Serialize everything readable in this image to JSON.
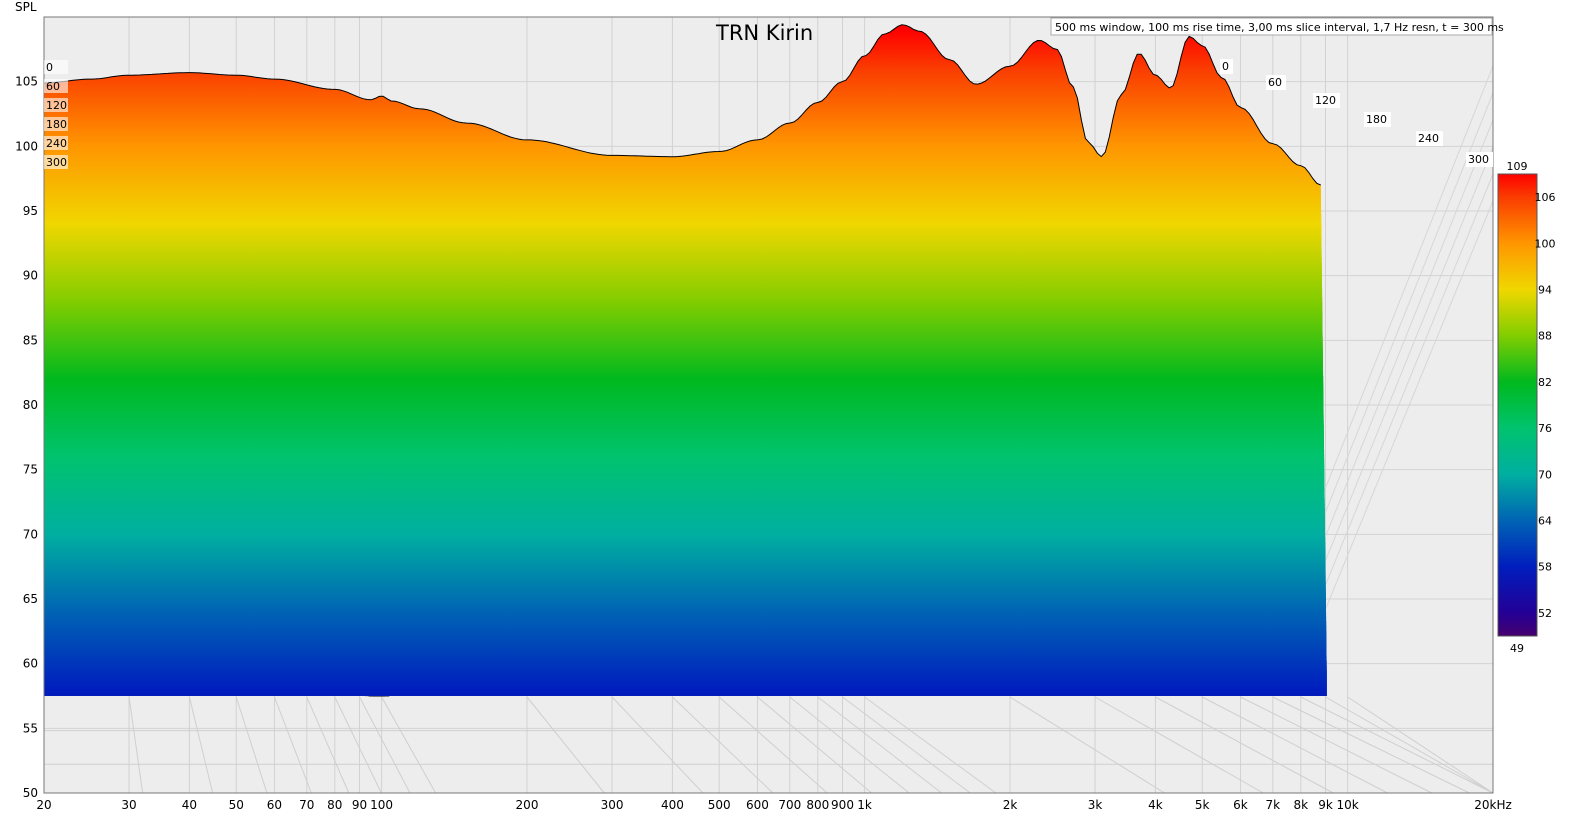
{
  "chart_data": {
    "type": "waterfall",
    "title": "TRN Kirin",
    "info": "500 ms window, 100 ms rise time, 3,00 ms slice interval, 1,7 Hz resn, t = 300 ms",
    "ylabel": "SPL",
    "xunit": "kHz",
    "x_scale": "log",
    "xlim": [
      20,
      20000
    ],
    "ylim": [
      50,
      110
    ],
    "x_ticks": [
      {
        "v": 20,
        "label": "20"
      },
      {
        "v": 30,
        "label": "30"
      },
      {
        "v": 40,
        "label": "40"
      },
      {
        "v": 50,
        "label": "50"
      },
      {
        "v": 60,
        "label": "60"
      },
      {
        "v": 70,
        "label": "70"
      },
      {
        "v": 80,
        "label": "80"
      },
      {
        "v": 90,
        "label": "90"
      },
      {
        "v": 100,
        "label": "100"
      },
      {
        "v": 200,
        "label": "200"
      },
      {
        "v": 300,
        "label": "300"
      },
      {
        "v": 400,
        "label": "400"
      },
      {
        "v": 500,
        "label": "500"
      },
      {
        "v": 600,
        "label": "600"
      },
      {
        "v": 700,
        "label": "700"
      },
      {
        "v": 800,
        "label": "800"
      },
      {
        "v": 900,
        "label": "900"
      },
      {
        "v": 1000,
        "label": "1k"
      },
      {
        "v": 2000,
        "label": "2k"
      },
      {
        "v": 3000,
        "label": "3k"
      },
      {
        "v": 4000,
        "label": "4k"
      },
      {
        "v": 5000,
        "label": "5k"
      },
      {
        "v": 6000,
        "label": "6k"
      },
      {
        "v": 7000,
        "label": "7k"
      },
      {
        "v": 8000,
        "label": "8k"
      },
      {
        "v": 9000,
        "label": "9k"
      },
      {
        "v": 10000,
        "label": "10k"
      },
      {
        "v": 20000,
        "label": "20kHz"
      }
    ],
    "y_ticks": [
      {
        "v": 50,
        "label": "50"
      },
      {
        "v": 55,
        "label": "55"
      },
      {
        "v": 60,
        "label": "60"
      },
      {
        "v": 65,
        "label": "65"
      },
      {
        "v": 70,
        "label": "70"
      },
      {
        "v": 75,
        "label": "75"
      },
      {
        "v": 80,
        "label": "80"
      },
      {
        "v": 85,
        "label": "85"
      },
      {
        "v": 90,
        "label": "90"
      },
      {
        "v": 95,
        "label": "95"
      },
      {
        "v": 100,
        "label": "100"
      },
      {
        "v": 105,
        "label": "105"
      }
    ],
    "time_labels": [
      "0",
      "60",
      "120",
      "180",
      "240",
      "300"
    ],
    "time_unit": "ms",
    "colorbar": {
      "min": 49,
      "max": 109,
      "ticks": [
        "109",
        "106",
        "100",
        "94",
        "88",
        "82",
        "76",
        "70",
        "64",
        "58",
        "52",
        "49"
      ]
    },
    "slices": 100,
    "front_slice_t0": {
      "x": [
        20,
        25,
        30,
        40,
        50,
        60,
        80,
        95,
        100,
        105,
        120,
        150,
        200,
        300,
        400,
        500,
        600,
        700,
        800,
        900,
        1000,
        1100,
        1200,
        1300,
        1500,
        1700,
        2000,
        2300,
        2500,
        2700,
        2900,
        3100,
        3400,
        3700,
        4000,
        4300,
        4700,
        5000,
        5500,
        6000,
        7000,
        8000,
        8800
      ],
      "y": [
        104.9,
        105.2,
        105.5,
        105.7,
        105.5,
        105.2,
        104.4,
        103.6,
        103.9,
        103.5,
        102.9,
        101.8,
        100.5,
        99.3,
        99.2,
        99.6,
        100.5,
        101.8,
        103.4,
        105.0,
        107.0,
        108.7,
        109.4,
        108.9,
        106.7,
        104.8,
        106.2,
        108.2,
        107.5,
        104.6,
        100.3,
        99.2,
        104.0,
        107.2,
        105.5,
        104.5,
        108.5,
        107.8,
        105.3,
        103.0,
        100.2,
        98.5,
        97.0
      ]
    },
    "floor_spl": 57.5
  }
}
